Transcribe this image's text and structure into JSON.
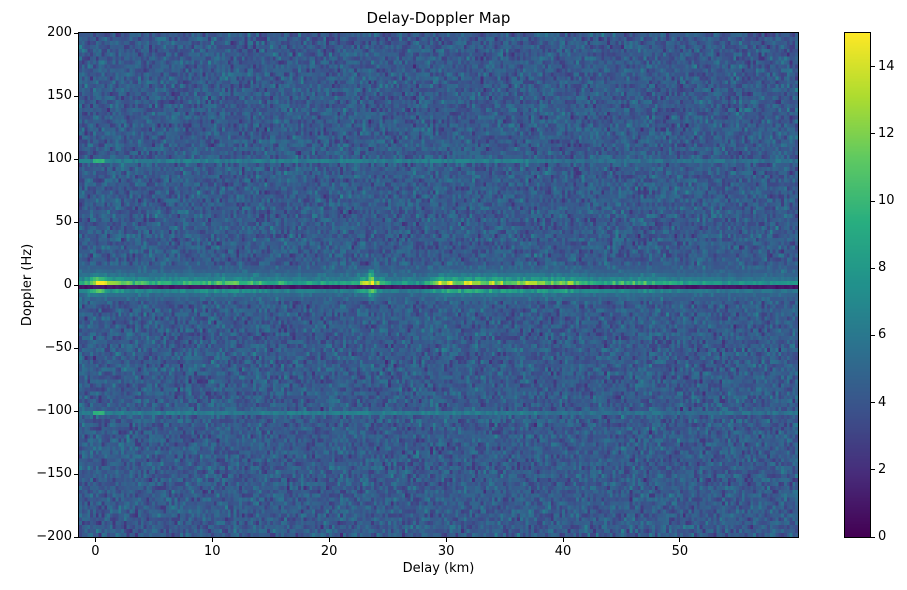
{
  "figure": {
    "title": "Delay-Doppler Map",
    "xlabel": "Delay (km)",
    "ylabel": "Doppler (Hz)"
  },
  "chart_data": {
    "type": "heatmap",
    "title": "Delay-Doppler Map",
    "xlabel": "Delay (km)",
    "ylabel": "Doppler (Hz)",
    "xlim": [
      -1.4,
      60.1
    ],
    "ylim": [
      -200,
      200
    ],
    "x_ticks": [
      0,
      10,
      20,
      30,
      40,
      50
    ],
    "y_ticks": [
      200,
      150,
      100,
      50,
      0,
      -50,
      -100,
      -150,
      -200
    ],
    "grid": {
      "cols": 256,
      "rows": 128
    },
    "colorbar": {
      "vmin": 0,
      "vmax": 15,
      "ticks": [
        0,
        2,
        4,
        6,
        8,
        10,
        12,
        14
      ],
      "colormap": "viridis"
    },
    "colormap_stops": [
      [
        0.0,
        "#440154"
      ],
      [
        0.125,
        "#472d7b"
      ],
      [
        0.25,
        "#3b528b"
      ],
      [
        0.375,
        "#2c728e"
      ],
      [
        0.5,
        "#21918c"
      ],
      [
        0.625,
        "#28ae80"
      ],
      [
        0.75,
        "#5ec962"
      ],
      [
        0.875,
        "#addc30"
      ],
      [
        1.0,
        "#fde725"
      ]
    ],
    "features": {
      "noise": {
        "mean": 4.25,
        "sd": 0.85
      },
      "zero_line": {
        "doppler_hz": 0,
        "value": 0.6
      },
      "direct_path_blob": {
        "delay_km": 0.3,
        "doppler_sigma_hz": 4.2,
        "delay_sigma_km": 0.55,
        "peak": 15
      },
      "bright_band": {
        "envelope": [
          {
            "delay_km": -1.4,
            "v": 8.5
          },
          {
            "delay_km": 0.2,
            "v": 14.5
          },
          {
            "delay_km": 1.5,
            "v": 11.5
          },
          {
            "delay_km": 5,
            "v": 9.2
          },
          {
            "delay_km": 8,
            "v": 9.8
          },
          {
            "delay_km": 11,
            "v": 10.6
          },
          {
            "delay_km": 14,
            "v": 9.6
          },
          {
            "delay_km": 18,
            "v": 8.6
          },
          {
            "delay_km": 22,
            "v": 8.4
          },
          {
            "delay_km": 23.5,
            "v": 14.5
          },
          {
            "delay_km": 25,
            "v": 8.2
          },
          {
            "delay_km": 28,
            "v": 7.6
          },
          {
            "delay_km": 29.5,
            "v": 13.2
          },
          {
            "delay_km": 33,
            "v": 12.8
          },
          {
            "delay_km": 36,
            "v": 11.8
          },
          {
            "delay_km": 40,
            "v": 12.4
          },
          {
            "delay_km": 43,
            "v": 9.0
          },
          {
            "delay_km": 47,
            "v": 10.4
          },
          {
            "delay_km": 50,
            "v": 8.2
          },
          {
            "delay_km": 55,
            "v": 7.6
          },
          {
            "delay_km": 60.1,
            "v": 7.2
          }
        ]
      },
      "vertical_streak": {
        "delay_km": 23.55,
        "half_width_km": 0.28,
        "doppler_range_hz": [
          -11,
          14
        ],
        "peak": 13.5
      },
      "harmonic_lines": [
        {
          "doppler_hz": 100,
          "value": 6.2,
          "fade_after_km": 38,
          "dot_delay_km": 0.3,
          "dot_value": 9.4
        },
        {
          "doppler_hz": -100,
          "value": 6.2,
          "fade_after_km": 38,
          "dot_delay_km": 0.3,
          "dot_value": 9.4
        }
      ],
      "haze_regions": [
        {
          "delay_km": [
            -1.4,
            16
          ],
          "doppler_hz": [
            0,
            13
          ],
          "boost": 2.0
        },
        {
          "delay_km": [
            -1.4,
            2.5
          ],
          "doppler_hz": [
            -9,
            0
          ],
          "boost": 2.0
        },
        {
          "delay_km": [
            20,
            27
          ],
          "doppler_hz": [
            0,
            15
          ],
          "boost": 1.3
        },
        {
          "delay_km": [
            29,
            42
          ],
          "doppler_hz": [
            0,
            8
          ],
          "boost": 1.4
        }
      ]
    }
  }
}
